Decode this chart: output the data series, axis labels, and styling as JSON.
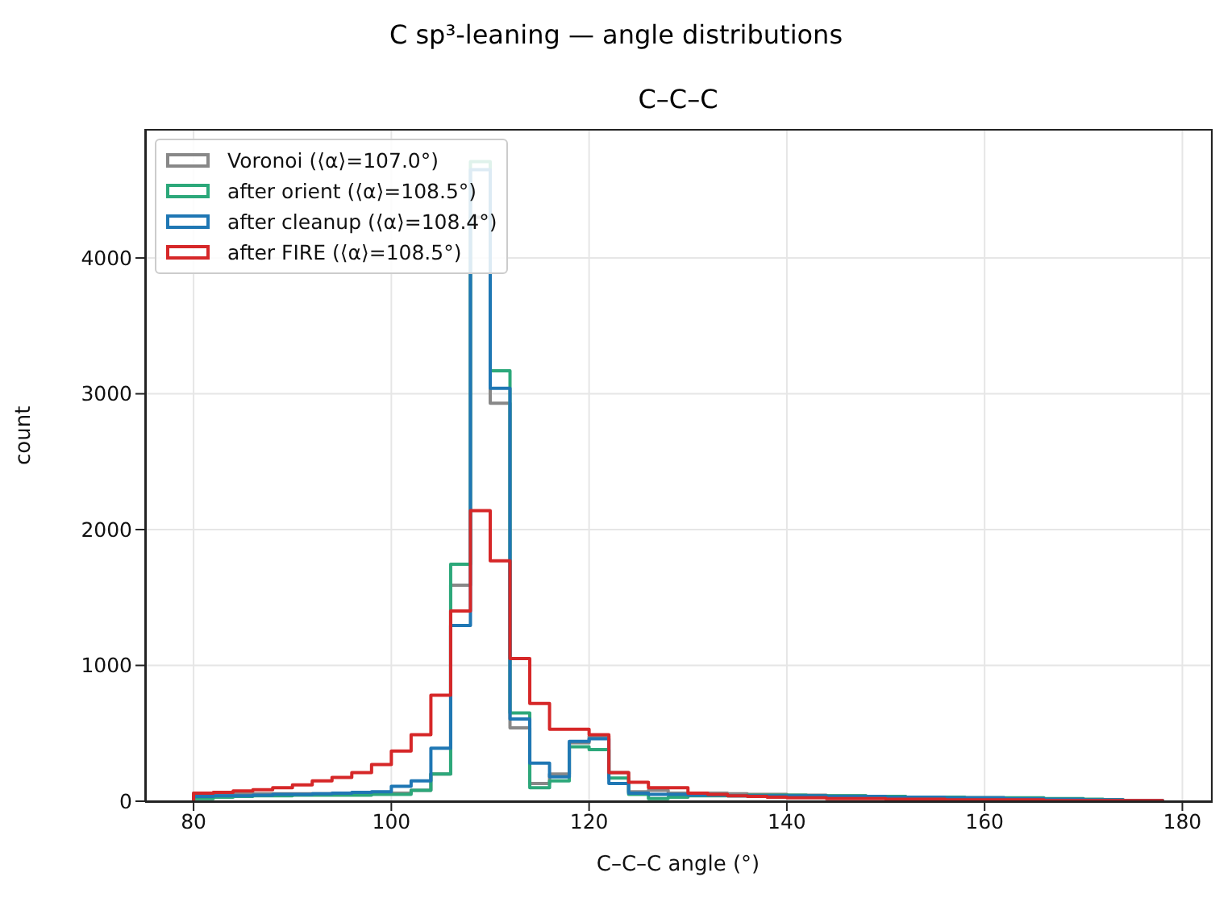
{
  "chart_data": {
    "type": "histogram",
    "title": "C sp³-leaning — angle distributions",
    "subtitle": "C–C–C",
    "xlabel": "C–C–C angle (°)",
    "ylabel": "count",
    "bins": [
      80,
      82,
      84,
      86,
      88,
      90,
      92,
      94,
      96,
      98,
      100,
      102,
      104,
      106,
      108,
      110,
      112,
      114,
      116,
      118,
      120,
      122,
      124,
      126,
      128,
      130,
      132,
      134,
      136,
      138,
      140,
      142,
      144,
      146,
      148,
      150,
      152,
      154,
      156,
      158,
      160,
      162,
      164,
      166,
      168,
      170,
      172,
      174,
      176,
      178
    ],
    "series": [
      {
        "name": "Voronoi (⟨α⟩=107.0°)",
        "color": "#888888",
        "values": [
          60,
          60,
          55,
          55,
          55,
          55,
          55,
          55,
          55,
          60,
          60,
          80,
          200,
          1590,
          4300,
          2930,
          540,
          130,
          200,
          430,
          480,
          210,
          70,
          80,
          60,
          60,
          60,
          55,
          50,
          50,
          45,
          45,
          40,
          40,
          35,
          35,
          30,
          30,
          30,
          25,
          25,
          20,
          20,
          15,
          15,
          10,
          10,
          5,
          5
        ]
      },
      {
        "name": "after orient (⟨α⟩=108.5°)",
        "color": "#2ca87a",
        "values": [
          20,
          30,
          35,
          40,
          40,
          45,
          45,
          45,
          45,
          50,
          50,
          80,
          200,
          1745,
          4710,
          3170,
          650,
          100,
          150,
          400,
          380,
          170,
          50,
          20,
          30,
          40,
          40,
          40,
          45,
          45,
          45,
          40,
          40,
          40,
          35,
          35,
          30,
          30,
          30,
          25,
          25,
          25,
          25,
          20,
          20,
          15,
          10,
          5,
          5
        ]
      },
      {
        "name": "after cleanup (⟨α⟩=108.4°)",
        "color": "#1f77b4",
        "values": [
          35,
          40,
          40,
          45,
          50,
          50,
          55,
          60,
          65,
          70,
          110,
          150,
          390,
          1294,
          4650,
          3040,
          605,
          280,
          180,
          440,
          460,
          130,
          60,
          50,
          50,
          45,
          45,
          40,
          40,
          40,
          40,
          40,
          35,
          35,
          35,
          30,
          30,
          30,
          25,
          25,
          25,
          20,
          20,
          15,
          15,
          10,
          10,
          5,
          5
        ]
      },
      {
        "name": "after FIRE (⟨α⟩=108.5°)",
        "color": "#d62728",
        "values": [
          60,
          65,
          75,
          85,
          100,
          120,
          150,
          175,
          210,
          270,
          370,
          490,
          780,
          1400,
          2140,
          1770,
          1050,
          720,
          530,
          530,
          490,
          210,
          140,
          100,
          100,
          60,
          50,
          40,
          35,
          30,
          25,
          25,
          20,
          20,
          20,
          15,
          15,
          15,
          10,
          10,
          10,
          10,
          10,
          5,
          5,
          5,
          5,
          5,
          5
        ]
      }
    ],
    "xlim": [
      75.1,
      182.9
    ],
    "xticks": [
      80,
      100,
      120,
      140,
      160,
      180
    ],
    "ylim": [
      0,
      4950
    ],
    "yticks": [
      0,
      1000,
      2000,
      3000,
      4000
    ],
    "grid": true,
    "legend": "top left"
  }
}
